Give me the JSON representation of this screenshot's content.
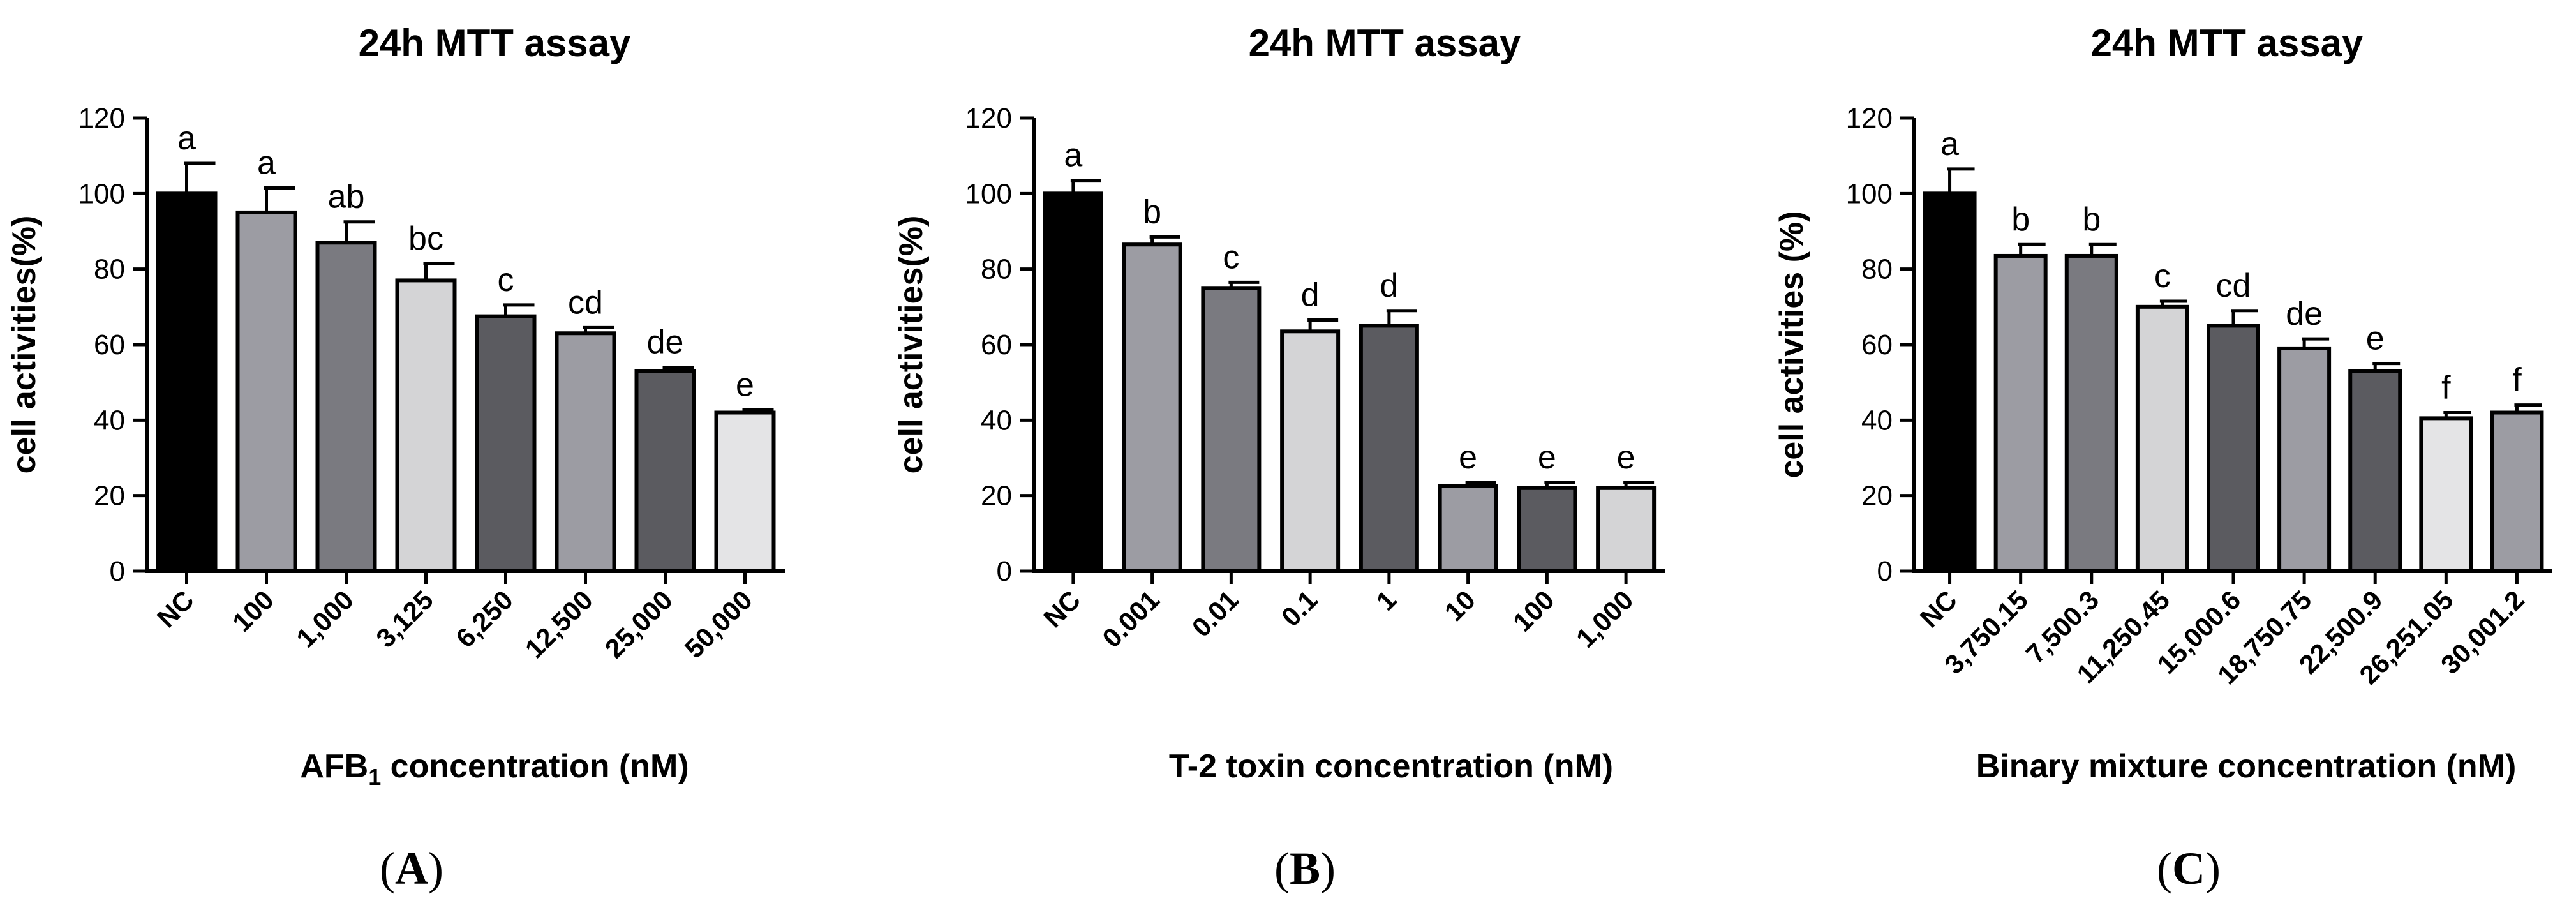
{
  "chart_data": [
    {
      "type": "bar",
      "title": "24h MTT assay",
      "ylabel": "cell activities(%)",
      "xlabel": "AFB₁ concentration (nM)",
      "panel_label": "A",
      "ylim": [
        0,
        120
      ],
      "yticks": [
        0,
        20,
        40,
        60,
        80,
        100,
        120
      ],
      "categories": [
        "NC",
        "100",
        "1,000",
        "3,125",
        "6,250",
        "12,500",
        "25,000",
        "50,000"
      ],
      "values": [
        100,
        95,
        87,
        77,
        67.5,
        63,
        53,
        42
      ],
      "errors": [
        8,
        6.5,
        5.5,
        4.5,
        3,
        1.5,
        1,
        0.7
      ],
      "significance": [
        "a",
        "a",
        "ab",
        "bc",
        "c",
        "cd",
        "de",
        "e"
      ],
      "bar_colors": [
        "#000000",
        "#9c9ca3",
        "#7a7a80",
        "#d4d4d6",
        "#5b5b60",
        "#9c9ca3",
        "#5b5b60",
        "#e4e4e6"
      ]
    },
    {
      "type": "bar",
      "title": "24h MTT assay",
      "ylabel": "cell activities(%)",
      "xlabel": "T-2 toxin concentration (nM)",
      "panel_label": "B",
      "ylim": [
        0,
        120
      ],
      "yticks": [
        0,
        20,
        40,
        60,
        80,
        100,
        120
      ],
      "categories": [
        "NC",
        "0.001",
        "0.01",
        "0.1",
        "1",
        "10",
        "100",
        "1,000"
      ],
      "values": [
        100,
        86.5,
        75,
        63.5,
        65,
        22.5,
        22,
        22
      ],
      "errors": [
        3.5,
        2,
        1.5,
        3,
        4,
        1,
        1.5,
        1.5
      ],
      "significance": [
        "a",
        "b",
        "c",
        "d",
        "d",
        "e",
        "e",
        "e"
      ],
      "bar_colors": [
        "#000000",
        "#9c9ca3",
        "#7a7a80",
        "#d4d4d6",
        "#5b5b60",
        "#9c9ca3",
        "#5b5b60",
        "#d4d4d6"
      ]
    },
    {
      "type": "bar",
      "title": "24h MTT assay",
      "ylabel": "cell activities (%)",
      "xlabel": "Binary mixture concentration (nM)",
      "panel_label": "C",
      "ylim": [
        0,
        120
      ],
      "yticks": [
        0,
        20,
        40,
        60,
        80,
        100,
        120
      ],
      "categories": [
        "NC",
        "3,750.15",
        "7,500.3",
        "11,250.45",
        "15,000.6",
        "18,750.75",
        "22,500.9",
        "26,251.05",
        "30,001.2"
      ],
      "values": [
        100,
        83.5,
        83.5,
        70,
        65,
        59,
        53,
        40.5,
        42
      ],
      "errors": [
        6.5,
        3,
        3,
        1.5,
        4,
        2.5,
        2,
        1.5,
        2
      ],
      "significance": [
        "a",
        "b",
        "b",
        "c",
        "cd",
        "de",
        "e",
        "f",
        "f"
      ],
      "bar_colors": [
        "#000000",
        "#9c9ca3",
        "#7a7a80",
        "#d4d4d6",
        "#5b5b60",
        "#9c9ca3",
        "#5b5b60",
        "#e4e4e6",
        "#9c9ca3"
      ]
    }
  ]
}
